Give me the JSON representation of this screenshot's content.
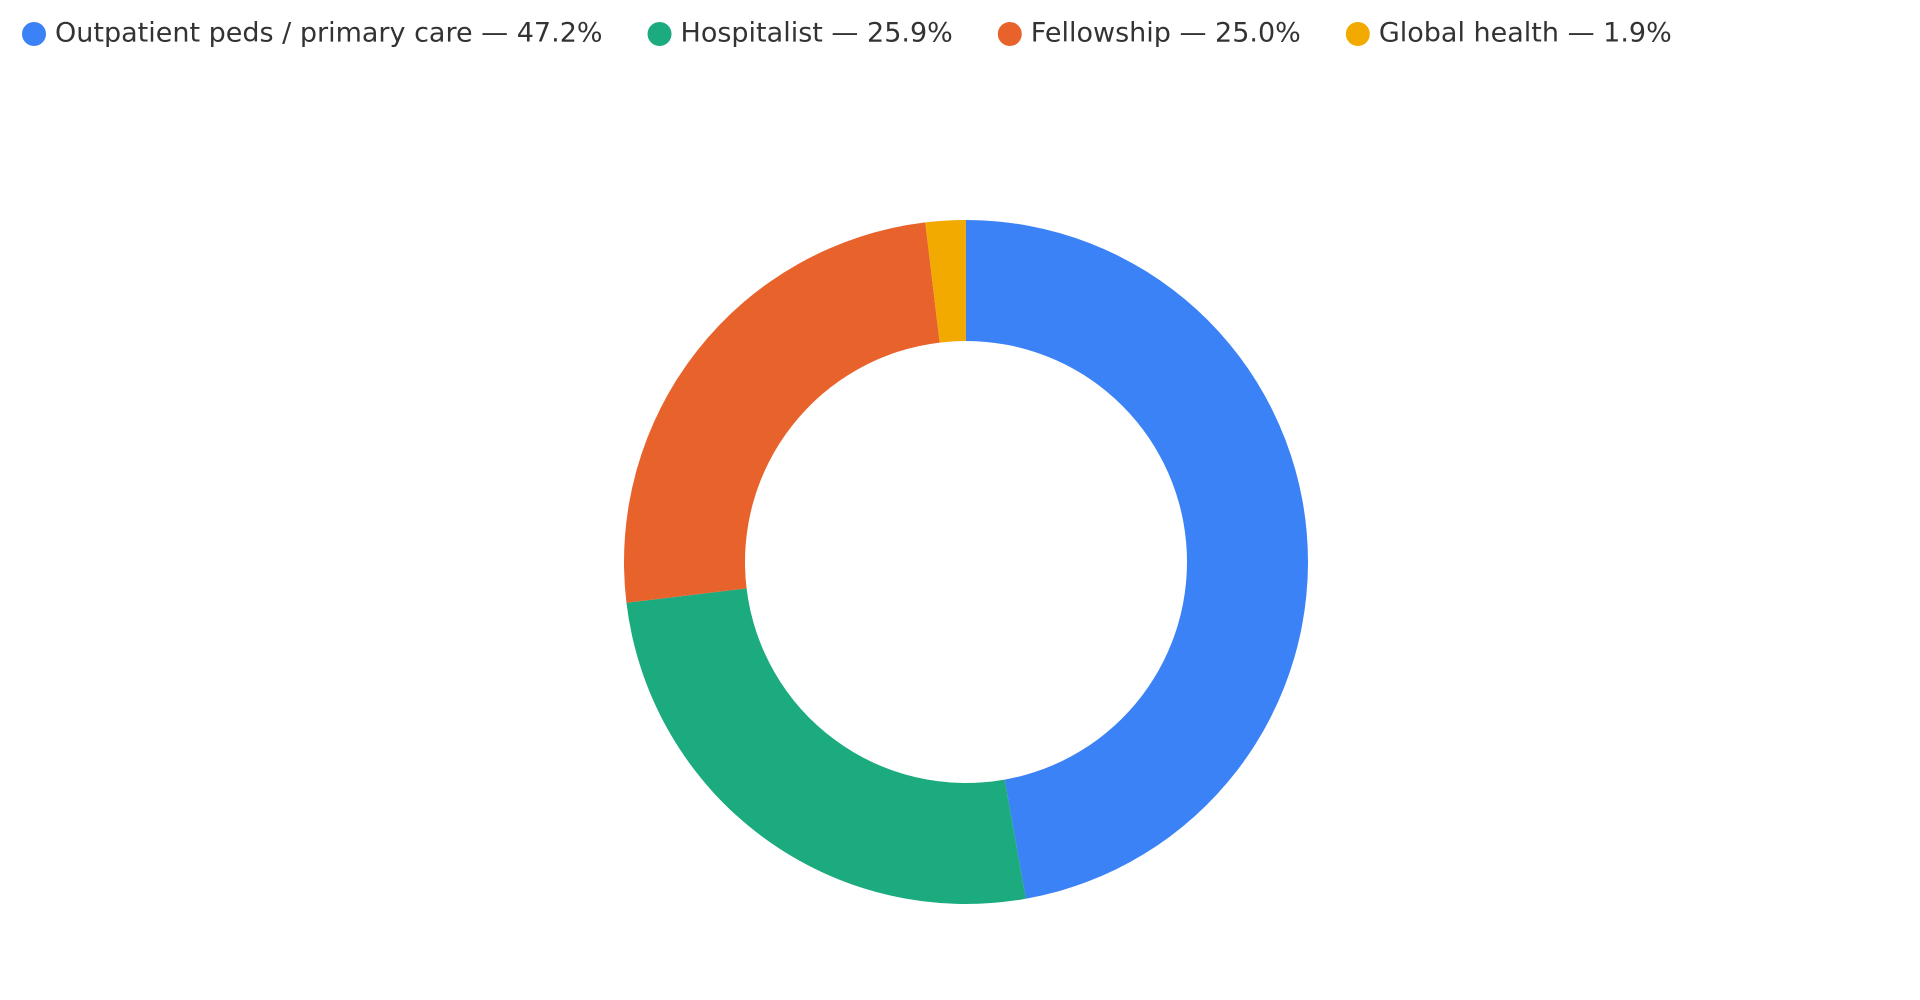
{
  "chart_data": {
    "type": "donut",
    "categories": [
      "Outpatient peds / primary care — 47.2%",
      "Hospitalist — 25.9%",
      "Fellowship — 25.0%",
      "Global health — 1.9%"
    ],
    "values": [
      47.2,
      25.9,
      25.0,
      1.9
    ],
    "colors": [
      "#3b82f6",
      "#1caa7f",
      "#e8622c",
      "#f2a900"
    ],
    "legend": "top-left"
  }
}
